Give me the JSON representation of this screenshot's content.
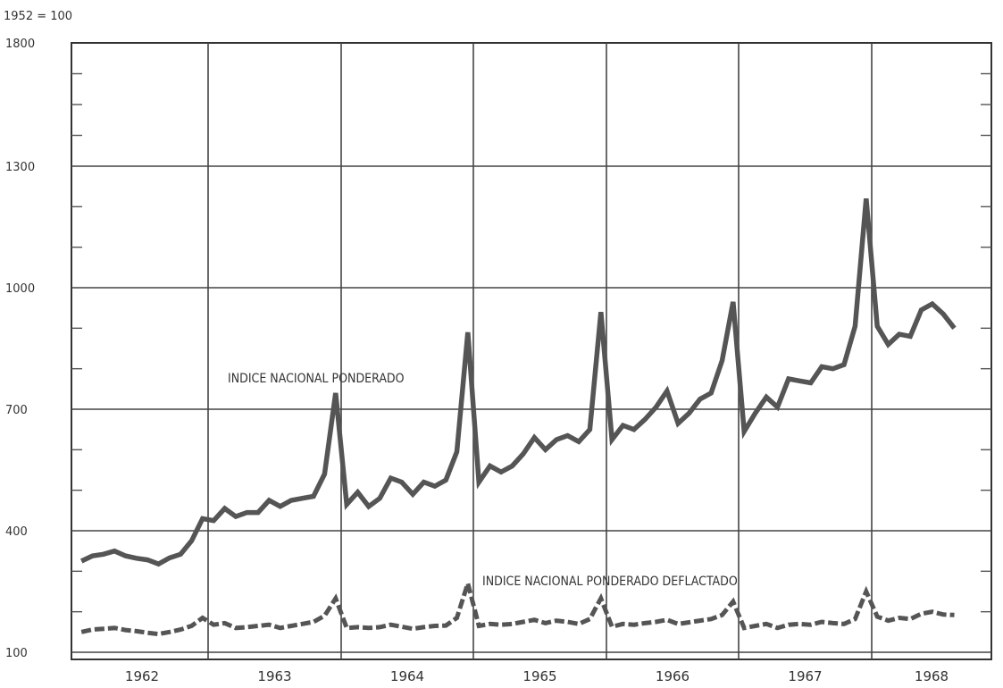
{
  "chart_data": {
    "type": "line",
    "unit_label": "1952 = 100",
    "y_tick_labels": [
      "1800",
      "1300",
      "1000",
      "700",
      "400",
      "100"
    ],
    "ylim": [
      100,
      1600
    ],
    "x_tick_labels": [
      "1962",
      "1963",
      "1964",
      "1965",
      "1966",
      "1967",
      "1968"
    ],
    "x_range_months": "1962-01 to 1968-09",
    "grid": true,
    "series": [
      {
        "name": "INDICE NACIONAL PONDERADO",
        "values": [
          325,
          338,
          342,
          350,
          338,
          332,
          328,
          318,
          333,
          342,
          375,
          430,
          425,
          455,
          435,
          445,
          445,
          475,
          460,
          475,
          480,
          485,
          540,
          740,
          465,
          495,
          460,
          480,
          530,
          520,
          490,
          520,
          510,
          525,
          595,
          890,
          520,
          560,
          545,
          560,
          590,
          630,
          600,
          625,
          635,
          620,
          650,
          940,
          625,
          660,
          650,
          675,
          705,
          745,
          665,
          690,
          725,
          740,
          820,
          965,
          645,
          690,
          730,
          705,
          775,
          770,
          765,
          805,
          800,
          810,
          905,
          1220,
          905,
          860,
          885,
          880,
          945,
          960,
          935,
          900
        ]
      },
      {
        "name": "INDICE NACIONAL PONDERADO DEFLACTADO",
        "values": [
          150,
          156,
          158,
          160,
          155,
          152,
          148,
          145,
          150,
          156,
          165,
          185,
          168,
          172,
          160,
          162,
          165,
          168,
          160,
          165,
          170,
          175,
          190,
          233,
          160,
          162,
          160,
          162,
          168,
          163,
          158,
          162,
          165,
          166,
          185,
          270,
          165,
          170,
          168,
          170,
          175,
          180,
          172,
          178,
          175,
          170,
          182,
          233,
          163,
          170,
          168,
          172,
          175,
          180,
          170,
          174,
          178,
          182,
          192,
          225,
          160,
          165,
          170,
          160,
          168,
          170,
          168,
          175,
          172,
          170,
          182,
          250,
          188,
          178,
          185,
          182,
          195,
          200,
          193,
          192
        ]
      }
    ]
  }
}
